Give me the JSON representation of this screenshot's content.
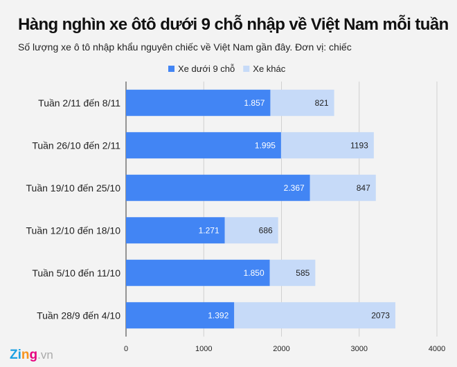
{
  "chart_data": {
    "type": "bar",
    "orientation": "horizontal",
    "stacked": true,
    "title": "Hàng nghìn xe ôtô dưới 9 chỗ nhập về Việt Nam mỗi tuần",
    "subtitle": "Số lượng xe ô tô nhập khẩu nguyên chiếc về Việt Nam gần đây. Đơn vị: chiếc",
    "categories": [
      "Tuần 2/11 đến 8/11",
      "Tuần 26/10 đến 2/11",
      "Tuần 19/10 đến 25/10",
      "Tuần 12/10 đến 18/10",
      "Tuần 5/10 đến 11/10",
      "Tuần 28/9 đến 4/10"
    ],
    "series": [
      {
        "name": "Xe dưới 9 chỗ",
        "color": "#4285f4",
        "values": [
          1857,
          1995,
          2367,
          1271,
          1850,
          1392
        ],
        "labels": [
          "1.857",
          "1.995",
          "2.367",
          "1.271",
          "1.850",
          "1.392"
        ]
      },
      {
        "name": "Xe khác",
        "color": "#c6daf8",
        "values": [
          821,
          1193,
          847,
          686,
          585,
          2073
        ],
        "labels": [
          "821",
          "1193",
          "847",
          "686",
          "585",
          "2073"
        ]
      }
    ],
    "xlim": [
      0,
      4000
    ],
    "xticks": [
      "0",
      "1000",
      "2000",
      "3000",
      "4000"
    ],
    "grid": true,
    "legend": "top-center"
  },
  "logo": {
    "text_main": "Zing",
    "text_suffix": ".vn"
  }
}
